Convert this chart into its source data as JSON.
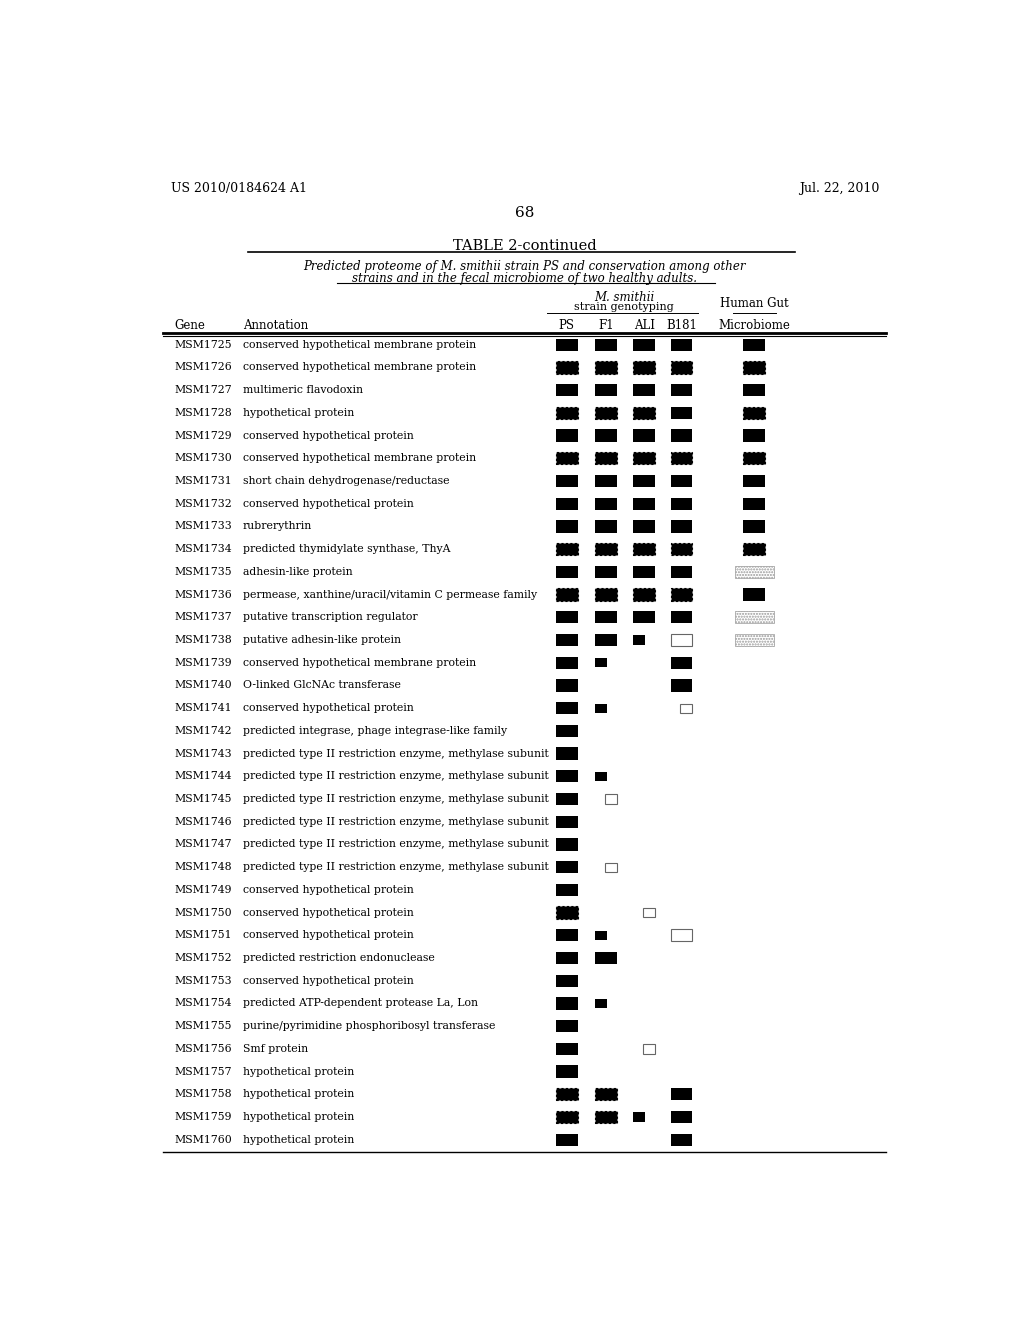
{
  "patent_left": "US 2010/0184624 A1",
  "patent_right": "Jul. 22, 2010",
  "page_number": "68",
  "table_title": "TABLE 2-continued",
  "subtitle_line1": "Predicted proteome of M. smithii strain PS and conservation among other",
  "subtitle_line2": "strains and in the fecal microbiome of two healthy adults.",
  "rows": [
    {
      "gene": "MSM1725",
      "annotation": "conserved hypothetical membrane protein",
      "PS": "S",
      "F1": "S",
      "ALI": "S",
      "B181": "S",
      "Micro": "S"
    },
    {
      "gene": "MSM1726",
      "annotation": "conserved hypothetical membrane protein",
      "PS": "D",
      "F1": "D",
      "ALI": "D",
      "B181": "D",
      "Micro": "D"
    },
    {
      "gene": "MSM1727",
      "annotation": "multimeric flavodoxin",
      "PS": "S",
      "F1": "S",
      "ALI": "S",
      "B181": "S",
      "Micro": "S"
    },
    {
      "gene": "MSM1728",
      "annotation": "hypothetical protein",
      "PS": "D",
      "F1": "D",
      "ALI": "D",
      "B181": "S",
      "Micro": "D"
    },
    {
      "gene": "MSM1729",
      "annotation": "conserved hypothetical protein",
      "PS": "S",
      "F1": "S",
      "ALI": "S",
      "B181": "S",
      "Micro": "S"
    },
    {
      "gene": "MSM1730",
      "annotation": "conserved hypothetical membrane protein",
      "PS": "D",
      "F1": "D",
      "ALI": "D",
      "B181": "D",
      "Micro": "D"
    },
    {
      "gene": "MSM1731",
      "annotation": "short chain dehydrogenase/reductase",
      "PS": "S",
      "F1": "S",
      "ALI": "S",
      "B181": "S",
      "Micro": "S"
    },
    {
      "gene": "MSM1732",
      "annotation": "conserved hypothetical protein",
      "PS": "S",
      "F1": "S",
      "ALI": "S",
      "B181": "S",
      "Micro": "S"
    },
    {
      "gene": "MSM1733",
      "annotation": "rubrerythrin",
      "PS": "S",
      "F1": "S",
      "ALI": "S",
      "B181": "S",
      "Micro": "S"
    },
    {
      "gene": "MSM1734",
      "annotation": "predicted thymidylate synthase, ThyA",
      "PS": "D",
      "F1": "D",
      "ALI": "D",
      "B181": "D",
      "Micro": "D"
    },
    {
      "gene": "MSM1735",
      "annotation": "adhesin-like protein",
      "PS": "S",
      "F1": "S",
      "ALI": "S",
      "B181": "S",
      "Micro": "H"
    },
    {
      "gene": "MSM1736",
      "annotation": "permease, xanthine/uracil/vitamin C permease family",
      "PS": "D",
      "F1": "D",
      "ALI": "D",
      "B181": "D",
      "Micro": "S"
    },
    {
      "gene": "MSM1737",
      "annotation": "putative transcription regulator",
      "PS": "S",
      "F1": "S",
      "ALI": "S",
      "B181": "S",
      "Micro": "H"
    },
    {
      "gene": "MSM1738",
      "annotation": "putative adhesin-like protein",
      "PS": "S",
      "F1": "S",
      "ALI": "h",
      "B181": "O",
      "Micro": "H"
    },
    {
      "gene": "MSM1739",
      "annotation": "conserved hypothetical membrane protein",
      "PS": "S",
      "F1": "h",
      "ALI": "",
      "B181": "S",
      "Micro": ""
    },
    {
      "gene": "MSM1740",
      "annotation": "O-linked GlcNAc transferase",
      "PS": "S",
      "F1": "",
      "ALI": "",
      "B181": "S",
      "Micro": ""
    },
    {
      "gene": "MSM1741",
      "annotation": "conserved hypothetical protein",
      "PS": "S",
      "F1": "h",
      "ALI": "",
      "B181": "o",
      "Micro": ""
    },
    {
      "gene": "MSM1742",
      "annotation": "predicted integrase, phage integrase-like family",
      "PS": "S",
      "F1": "",
      "ALI": "",
      "B181": "",
      "Micro": ""
    },
    {
      "gene": "MSM1743",
      "annotation": "predicted type II restriction enzyme, methylase subunit",
      "PS": "S",
      "F1": "",
      "ALI": "",
      "B181": "",
      "Micro": ""
    },
    {
      "gene": "MSM1744",
      "annotation": "predicted type II restriction enzyme, methylase subunit",
      "PS": "S",
      "F1": "h",
      "ALI": "",
      "B181": "",
      "Micro": ""
    },
    {
      "gene": "MSM1745",
      "annotation": "predicted type II restriction enzyme, methylase subunit",
      "PS": "S",
      "F1": "o",
      "ALI": "",
      "B181": "",
      "Micro": ""
    },
    {
      "gene": "MSM1746",
      "annotation": "predicted type II restriction enzyme, methylase subunit",
      "PS": "S",
      "F1": "",
      "ALI": "",
      "B181": "",
      "Micro": ""
    },
    {
      "gene": "MSM1747",
      "annotation": "predicted type II restriction enzyme, methylase subunit",
      "PS": "S",
      "F1": "",
      "ALI": "",
      "B181": "",
      "Micro": ""
    },
    {
      "gene": "MSM1748",
      "annotation": "predicted type II restriction enzyme, methylase subunit",
      "PS": "S",
      "F1": "o",
      "ALI": "",
      "B181": "",
      "Micro": ""
    },
    {
      "gene": "MSM1749",
      "annotation": "conserved hypothetical protein",
      "PS": "S",
      "F1": "",
      "ALI": "",
      "B181": "",
      "Micro": ""
    },
    {
      "gene": "MSM1750",
      "annotation": "conserved hypothetical protein",
      "PS": "D",
      "F1": "",
      "ALI": "o",
      "B181": "",
      "Micro": ""
    },
    {
      "gene": "MSM1751",
      "annotation": "conserved hypothetical protein",
      "PS": "S",
      "F1": "h",
      "ALI": "",
      "B181": "O",
      "Micro": ""
    },
    {
      "gene": "MSM1752",
      "annotation": "predicted restriction endonuclease",
      "PS": "S",
      "F1": "S",
      "ALI": "",
      "B181": "",
      "Micro": ""
    },
    {
      "gene": "MSM1753",
      "annotation": "conserved hypothetical protein",
      "PS": "S",
      "F1": "",
      "ALI": "",
      "B181": "",
      "Micro": ""
    },
    {
      "gene": "MSM1754",
      "annotation": "predicted ATP-dependent protease La, Lon",
      "PS": "S",
      "F1": "h",
      "ALI": "",
      "B181": "",
      "Micro": ""
    },
    {
      "gene": "MSM1755",
      "annotation": "purine/pyrimidine phosphoribosyl transferase",
      "PS": "S",
      "F1": "",
      "ALI": "",
      "B181": "",
      "Micro": ""
    },
    {
      "gene": "MSM1756",
      "annotation": "Smf protein",
      "PS": "S",
      "F1": "",
      "ALI": "o",
      "B181": "",
      "Micro": ""
    },
    {
      "gene": "MSM1757",
      "annotation": "hypothetical protein",
      "PS": "S",
      "F1": "",
      "ALI": "",
      "B181": "",
      "Micro": ""
    },
    {
      "gene": "MSM1758",
      "annotation": "hypothetical protein",
      "PS": "D",
      "F1": "D",
      "ALI": "",
      "B181": "S",
      "Micro": ""
    },
    {
      "gene": "MSM1759",
      "annotation": "hypothetical protein",
      "PS": "D",
      "F1": "D",
      "ALI": "h",
      "B181": "S",
      "Micro": ""
    },
    {
      "gene": "MSM1760",
      "annotation": "hypothetical protein",
      "PS": "S",
      "F1": "",
      "ALI": "",
      "B181": "S",
      "Micro": ""
    }
  ]
}
